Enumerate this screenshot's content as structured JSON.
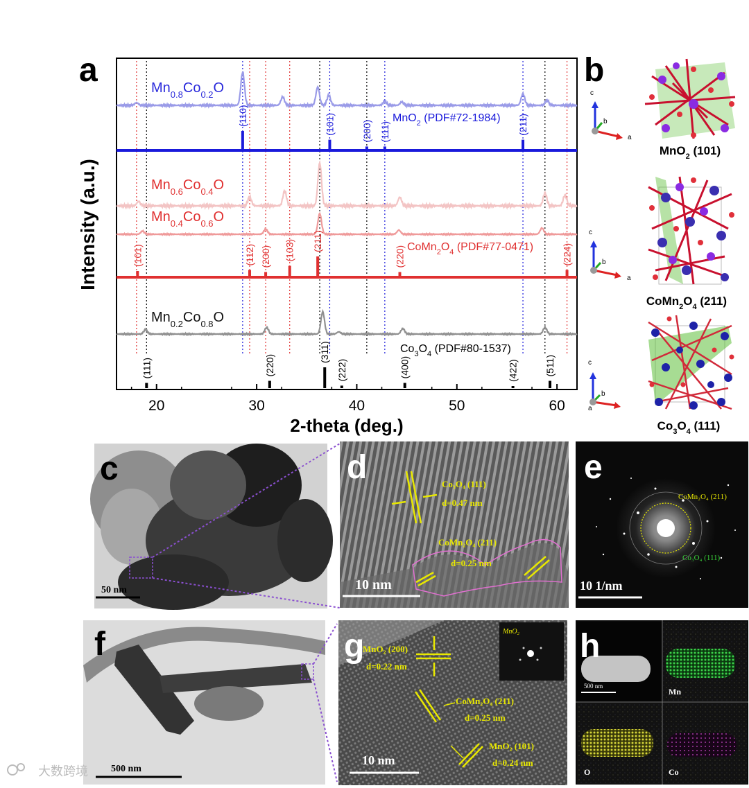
{
  "panels": {
    "a": "a",
    "b": "b",
    "c": "c",
    "d": "d",
    "e": "e",
    "f": "f",
    "g": "g",
    "h": "h"
  },
  "chart_data": {
    "type": "line",
    "title": "",
    "xlabel": "2-theta (deg.)",
    "ylabel": "Intensity (a.u.)",
    "xlim": [
      16,
      62
    ],
    "xticks": [
      20,
      30,
      40,
      50,
      60
    ],
    "xtick_labels": [
      "20",
      "30",
      "40",
      "50",
      "60"
    ],
    "series": [
      {
        "name_main": "Mn",
        "sub1": "0.8",
        "mid": "Co",
        "sub2": "0.2",
        "tail": "O",
        "color": "#9a9be8",
        "peaks": [
          [
            28.6,
            1.0
          ],
          [
            36.1,
            0.55
          ],
          [
            37.2,
            0.3
          ],
          [
            32.6,
            0.25
          ],
          [
            42.8,
            0.12
          ],
          [
            56.6,
            0.35
          ],
          [
            59.0,
            0.15
          ],
          [
            18.0,
            0.08
          ],
          [
            44.5,
            0.1
          ]
        ]
      },
      {
        "name_main": "Mn",
        "sub1": "0.6",
        "mid": "Co",
        "sub2": "0.4",
        "tail": "O",
        "color": "#f3c4c4",
        "peaks": [
          [
            36.3,
            1.0
          ],
          [
            32.8,
            0.35
          ],
          [
            29.3,
            0.2
          ],
          [
            44.3,
            0.2
          ],
          [
            58.8,
            0.3
          ],
          [
            60.8,
            0.25
          ],
          [
            18.2,
            0.1
          ]
        ]
      },
      {
        "name_main": "Mn",
        "sub1": "0.4",
        "mid": "Co",
        "sub2": "0.6",
        "tail": "O",
        "color": "#ef9a9a",
        "peaks": [
          [
            36.3,
            1.0
          ],
          [
            30.9,
            0.25
          ],
          [
            44.2,
            0.2
          ],
          [
            58.5,
            0.3
          ],
          [
            18.6,
            0.15
          ]
        ]
      },
      {
        "name_main": "Mn",
        "sub1": "0.2",
        "mid": "Co",
        "sub2": "0.8",
        "tail": "O",
        "color": "#909090",
        "peaks": [
          [
            36.6,
            1.0
          ],
          [
            31.0,
            0.3
          ],
          [
            44.6,
            0.25
          ],
          [
            58.8,
            0.3
          ],
          [
            18.9,
            0.2
          ],
          [
            38.2,
            0.1
          ]
        ]
      }
    ],
    "references": [
      {
        "name": "MnO",
        "sub": "2",
        "suffix": " (PDF#72-1984)",
        "color": "#1a1adb",
        "lines": [
          {
            "x": 28.6,
            "h": 1.0,
            "hkl": "(110)"
          },
          {
            "x": 37.3,
            "h": 0.55,
            "hkl": "(101)"
          },
          {
            "x": 41.0,
            "h": 0.2,
            "hkl": "(200)"
          },
          {
            "x": 42.8,
            "h": 0.2,
            "hkl": "(111)"
          },
          {
            "x": 56.6,
            "h": 0.55,
            "hkl": "(211)"
          }
        ]
      },
      {
        "name": "CoMn",
        "sub": "2",
        "name2": "O",
        "sub2": "4",
        "suffix": " (PDF#77-0471)",
        "color": "#e03030",
        "lines": [
          {
            "x": 18.1,
            "h": 0.3,
            "hkl": "(101)"
          },
          {
            "x": 29.3,
            "h": 0.35,
            "hkl": "(112)"
          },
          {
            "x": 30.9,
            "h": 0.25,
            "hkl": "(200)"
          },
          {
            "x": 33.3,
            "h": 0.55,
            "hkl": "(103)"
          },
          {
            "x": 36.1,
            "h": 1.0,
            "hkl": "(211)"
          },
          {
            "x": 44.3,
            "h": 0.25,
            "hkl": "(220)"
          },
          {
            "x": 61.0,
            "h": 0.35,
            "hkl": "(224)"
          }
        ]
      },
      {
        "name": "Co",
        "sub": "3",
        "name2": "O",
        "sub2": "4",
        "suffix": " (PDF#80-1537)",
        "color": "#000000",
        "lines": [
          {
            "x": 19.0,
            "h": 0.25,
            "hkl": "(111)"
          },
          {
            "x": 31.3,
            "h": 0.35,
            "hkl": "(220)"
          },
          {
            "x": 36.8,
            "h": 1.0,
            "hkl": "(311)"
          },
          {
            "x": 38.5,
            "h": 0.12,
            "hkl": "(222)"
          },
          {
            "x": 44.8,
            "h": 0.25,
            "hkl": "(400)"
          },
          {
            "x": 55.6,
            "h": 0.1,
            "hkl": "(422)"
          },
          {
            "x": 59.3,
            "h": 0.35,
            "hkl": "(511)"
          }
        ]
      }
    ],
    "guide_lines": [
      {
        "x": 18.0,
        "color": "#e03030"
      },
      {
        "x": 19.0,
        "color": "#000000"
      },
      {
        "x": 28.6,
        "color": "#1a1adb"
      },
      {
        "x": 29.3,
        "color": "#e03030"
      },
      {
        "x": 30.9,
        "color": "#e03030"
      },
      {
        "x": 33.3,
        "color": "#e03030"
      },
      {
        "x": 36.3,
        "color": "#000000"
      },
      {
        "x": 37.3,
        "color": "#1a1adb"
      },
      {
        "x": 41.0,
        "color": "#000000"
      },
      {
        "x": 42.8,
        "color": "#1a1adb"
      },
      {
        "x": 56.6,
        "color": "#1a1adb"
      },
      {
        "x": 58.8,
        "color": "#000000"
      },
      {
        "x": 61.0,
        "color": "#e03030"
      }
    ]
  },
  "structures": [
    {
      "name": "MnO",
      "sub": "2",
      "rest": " (101)"
    },
    {
      "name": "CoMn",
      "sub": "2",
      "mid": "O",
      "sub2": "4",
      "rest": " (211)"
    },
    {
      "name": "Co",
      "sub": "3",
      "mid": "O",
      "sub2": "4",
      "rest": " (111)"
    }
  ],
  "axes_labels": {
    "c": "c",
    "b": "b",
    "a": "a"
  },
  "micrographs": {
    "c_scale": "50 nm",
    "d_scale": "10 nm",
    "d_label1_line1": "Co₃O₄ (111)",
    "d_label1_line2": "d=0.47 nm",
    "d_label2_line1": "CoMn₂O₄ (211)",
    "d_label2_line2": "d=0.25 nm",
    "e_scale": "10  1/nm",
    "e_ring1": "CoMn₂O₄ (211)",
    "e_ring2": "Co₃O₄ (111)",
    "f_scale": "500 nm",
    "g_scale": "10 nm",
    "g_inset": "MnO₂",
    "g_label1_line1": "MnO₂ (200)",
    "g_label1_line2": "d=0.22 nm",
    "g_label2_line1": "CoMn₂O₄ (211)",
    "g_label2_line2": "d=0.25 nm",
    "g_label3_line1": "MnO₂ (101)",
    "g_label3_line2": "d=0.24 nm",
    "h_scale": "500 nm",
    "h_mn": "Mn",
    "h_o": "O",
    "h_co": "Co"
  },
  "watermark": "大数跨境"
}
